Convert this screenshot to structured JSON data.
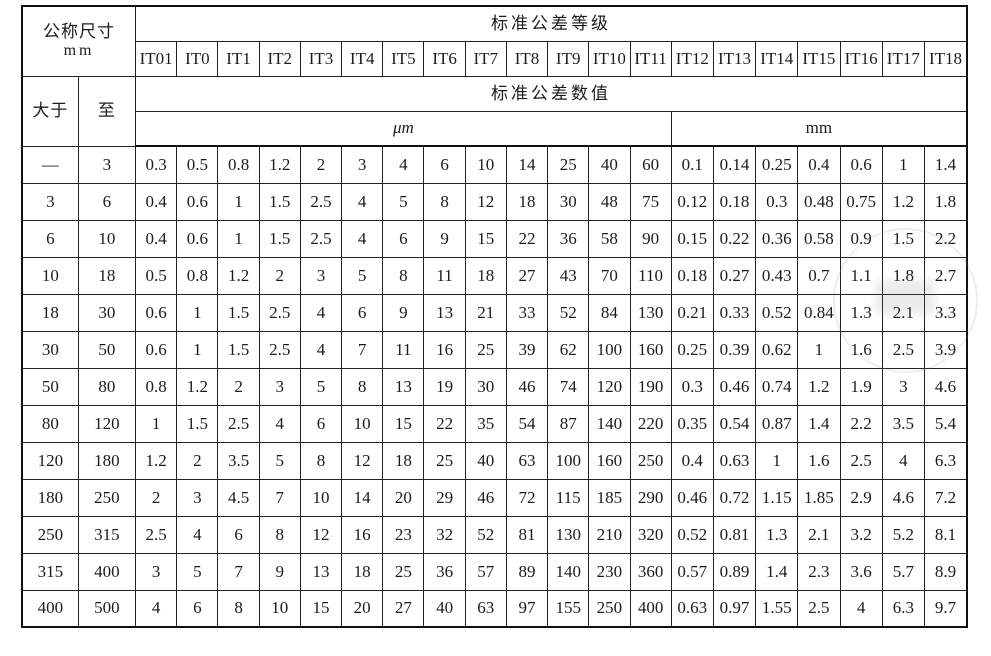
{
  "table": {
    "nominal_size_header": "公称尺寸",
    "nominal_size_unit": "mm",
    "grade_header": "标准公差等级",
    "value_header": "标准公差数值",
    "over_label": "大于",
    "upto_label": "至",
    "um_unit_label": "μm",
    "mm_unit_label": "mm",
    "grades": [
      "IT01",
      "IT0",
      "IT1",
      "IT2",
      "IT3",
      "IT4",
      "IT5",
      "IT6",
      "IT7",
      "IT8",
      "IT9",
      "IT10",
      "IT11",
      "IT12",
      "IT13",
      "IT14",
      "IT15",
      "IT16",
      "IT17",
      "IT18"
    ],
    "um_span": 13,
    "mm_span": 7,
    "rows": [
      {
        "over": "—",
        "upto": "3",
        "values": [
          "0.3",
          "0.5",
          "0.8",
          "1.2",
          "2",
          "3",
          "4",
          "6",
          "10",
          "14",
          "25",
          "40",
          "60",
          "0.1",
          "0.14",
          "0.25",
          "0.4",
          "0.6",
          "1",
          "1.4"
        ]
      },
      {
        "over": "3",
        "upto": "6",
        "values": [
          "0.4",
          "0.6",
          "1",
          "1.5",
          "2.5",
          "4",
          "5",
          "8",
          "12",
          "18",
          "30",
          "48",
          "75",
          "0.12",
          "0.18",
          "0.3",
          "0.48",
          "0.75",
          "1.2",
          "1.8"
        ]
      },
      {
        "over": "6",
        "upto": "10",
        "values": [
          "0.4",
          "0.6",
          "1",
          "1.5",
          "2.5",
          "4",
          "6",
          "9",
          "15",
          "22",
          "36",
          "58",
          "90",
          "0.15",
          "0.22",
          "0.36",
          "0.58",
          "0.9",
          "1.5",
          "2.2"
        ]
      },
      {
        "over": "10",
        "upto": "18",
        "values": [
          "0.5",
          "0.8",
          "1.2",
          "2",
          "3",
          "5",
          "8",
          "11",
          "18",
          "27",
          "43",
          "70",
          "110",
          "0.18",
          "0.27",
          "0.43",
          "0.7",
          "1.1",
          "1.8",
          "2.7"
        ]
      },
      {
        "over": "18",
        "upto": "30",
        "values": [
          "0.6",
          "1",
          "1.5",
          "2.5",
          "4",
          "6",
          "9",
          "13",
          "21",
          "33",
          "52",
          "84",
          "130",
          "0.21",
          "0.33",
          "0.52",
          "0.84",
          "1.3",
          "2.1",
          "3.3"
        ]
      },
      {
        "over": "30",
        "upto": "50",
        "values": [
          "0.6",
          "1",
          "1.5",
          "2.5",
          "4",
          "7",
          "11",
          "16",
          "25",
          "39",
          "62",
          "100",
          "160",
          "0.25",
          "0.39",
          "0.62",
          "1",
          "1.6",
          "2.5",
          "3.9"
        ]
      },
      {
        "over": "50",
        "upto": "80",
        "values": [
          "0.8",
          "1.2",
          "2",
          "3",
          "5",
          "8",
          "13",
          "19",
          "30",
          "46",
          "74",
          "120",
          "190",
          "0.3",
          "0.46",
          "0.74",
          "1.2",
          "1.9",
          "3",
          "4.6"
        ]
      },
      {
        "over": "80",
        "upto": "120",
        "values": [
          "1",
          "1.5",
          "2.5",
          "4",
          "6",
          "10",
          "15",
          "22",
          "35",
          "54",
          "87",
          "140",
          "220",
          "0.35",
          "0.54",
          "0.87",
          "1.4",
          "2.2",
          "3.5",
          "5.4"
        ]
      },
      {
        "over": "120",
        "upto": "180",
        "values": [
          "1.2",
          "2",
          "3.5",
          "5",
          "8",
          "12",
          "18",
          "25",
          "40",
          "63",
          "100",
          "160",
          "250",
          "0.4",
          "0.63",
          "1",
          "1.6",
          "2.5",
          "4",
          "6.3"
        ]
      },
      {
        "over": "180",
        "upto": "250",
        "values": [
          "2",
          "3",
          "4.5",
          "7",
          "10",
          "14",
          "20",
          "29",
          "46",
          "72",
          "115",
          "185",
          "290",
          "0.46",
          "0.72",
          "1.15",
          "1.85",
          "2.9",
          "4.6",
          "7.2"
        ]
      },
      {
        "over": "250",
        "upto": "315",
        "values": [
          "2.5",
          "4",
          "6",
          "8",
          "12",
          "16",
          "23",
          "32",
          "52",
          "81",
          "130",
          "210",
          "320",
          "0.52",
          "0.81",
          "1.3",
          "2.1",
          "3.2",
          "5.2",
          "8.1"
        ]
      },
      {
        "over": "315",
        "upto": "400",
        "values": [
          "3",
          "5",
          "7",
          "9",
          "13",
          "18",
          "25",
          "36",
          "57",
          "89",
          "140",
          "230",
          "360",
          "0.57",
          "0.89",
          "1.4",
          "2.3",
          "3.6",
          "5.7",
          "8.9"
        ]
      },
      {
        "over": "400",
        "upto": "500",
        "values": [
          "4",
          "6",
          "8",
          "10",
          "15",
          "20",
          "27",
          "40",
          "63",
          "97",
          "155",
          "250",
          "400",
          "0.63",
          "0.97",
          "1.55",
          "2.5",
          "4",
          "6.3",
          "9.7"
        ]
      }
    ]
  },
  "colors": {
    "background": "#ffffff",
    "border": "#222222",
    "outer_border": "#111111",
    "text": "#1b1b1b"
  }
}
